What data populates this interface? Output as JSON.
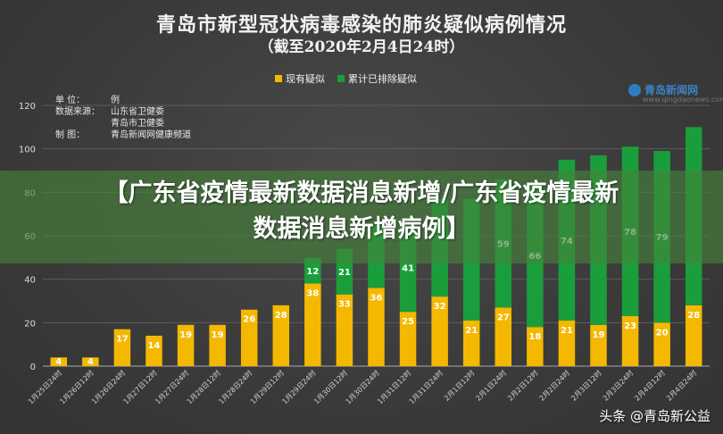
{
  "title": "青岛市新型冠状病毒感染的肺炎疑似病例情况",
  "subtitle": "（截至2020年2月4日24时）",
  "legend": {
    "suspected": "现有疑似",
    "excluded": "累计已排除疑似"
  },
  "meta": {
    "unit_key": "单  位：",
    "unit_val": "例",
    "source_key": "数据来源：",
    "source_val1": "山东省卫健委",
    "source_val2": "青岛市卫健委",
    "maker_key": "制  图：",
    "maker_val": "青岛新闻网健康频道"
  },
  "logo": {
    "text": "青岛新闻网",
    "url": "www.qingdaonews.com"
  },
  "banner": {
    "line1": "【广东省疫情最新数据消息新增/广东省疫情最新",
    "line2": "数据消息新增病例】"
  },
  "watermark": "头条 @青岛新公益",
  "colors": {
    "suspected": "#f5b800",
    "excluded": "#1a9e3c"
  },
  "chart_data": {
    "type": "bar",
    "stacked": true,
    "categories": [
      "1月25日24时",
      "1月26日12时",
      "1月26日24时",
      "1月27日12时",
      "1月27日24时",
      "1月28日12时",
      "1月28日24时",
      "1月29日12时",
      "1月29日24时",
      "1月30日12时",
      "1月30日24时",
      "1月31日12时",
      "1月31日24时",
      "2月1日12时",
      "2月1日24时",
      "2月2日12时",
      "2月2日24时",
      "2月3日12时",
      "2月3日24时",
      "2月4日12时",
      "2月4日24时"
    ],
    "series": [
      {
        "name": "现有疑似",
        "values": [
          4,
          4,
          17,
          14,
          19,
          19,
          26,
          28,
          38,
          33,
          36,
          25,
          32,
          21,
          27,
          18,
          21,
          19,
          23,
          20,
          28
        ],
        "labels": [
          "4",
          "4",
          "17",
          "14",
          "19",
          "19",
          "26",
          "28",
          "38",
          "33",
          "36",
          "25",
          "32",
          "21",
          "27",
          "18",
          "21",
          "19",
          "23",
          "20",
          "28"
        ]
      },
      {
        "name": "累计已排除疑似",
        "values": [
          0,
          0,
          0,
          0,
          0,
          0,
          0,
          0,
          12,
          21,
          29,
          41,
          45,
          56,
          59,
          66,
          74,
          78,
          78,
          79,
          82
        ],
        "labels": [
          "",
          "",
          "",
          "",
          "",
          "",
          "",
          "",
          "12",
          "21",
          "",
          "41",
          "",
          "",
          "59",
          "66",
          "74",
          "",
          "78",
          "79",
          ""
        ]
      }
    ],
    "yticks": [
      0,
      20,
      40,
      60,
      80,
      100,
      120
    ],
    "ylim": [
      0,
      120
    ],
    "grid": true
  }
}
